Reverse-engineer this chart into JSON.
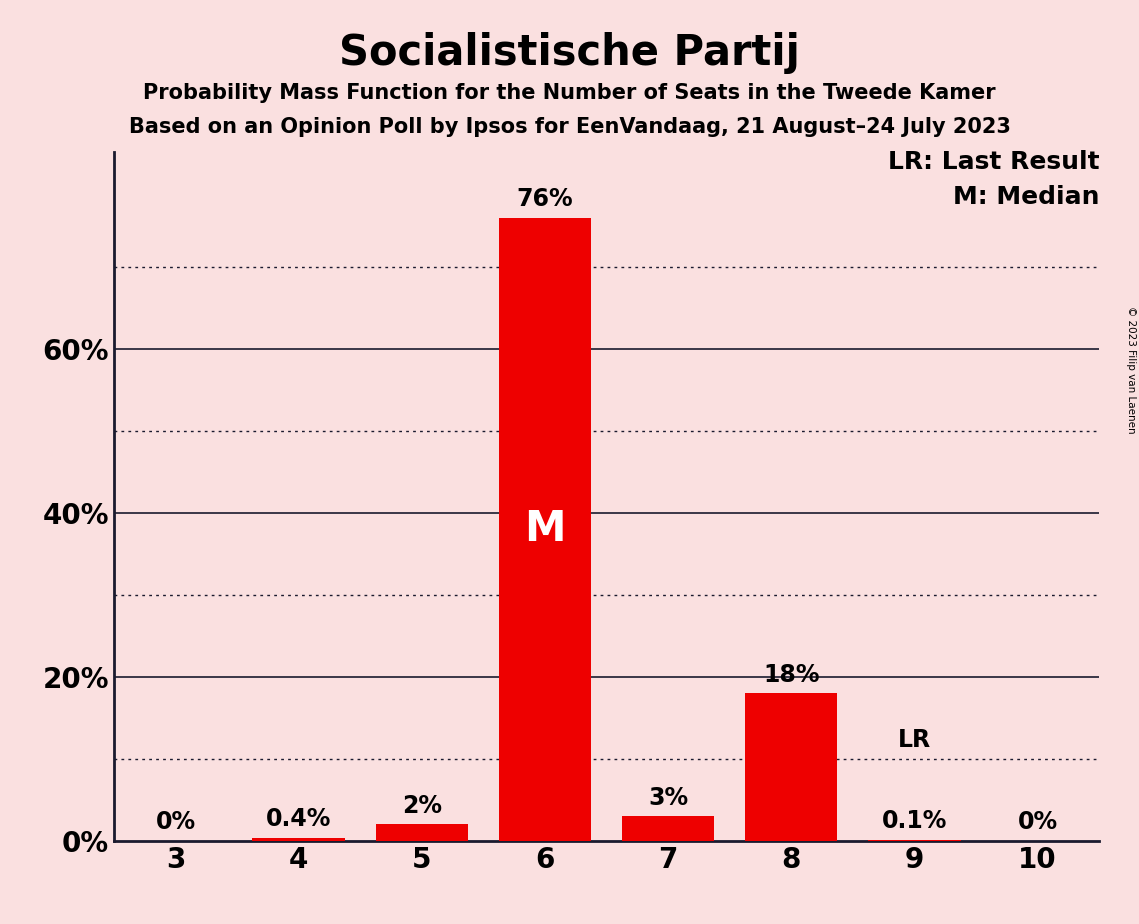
{
  "title": "Socialistische Partij",
  "subtitle1": "Probability Mass Function for the Number of Seats in the Tweede Kamer",
  "subtitle2": "Based on an Opinion Poll by Ipsos for EenVandaag, 21 August–24 July 2023",
  "categories": [
    3,
    4,
    5,
    6,
    7,
    8,
    9,
    10
  ],
  "values": [
    0.0,
    0.4,
    2.0,
    76.0,
    3.0,
    18.0,
    0.1,
    0.0
  ],
  "bar_labels": [
    "0%",
    "0.4%",
    "2%",
    "76%",
    "3%",
    "18%",
    "0.1%",
    "0%"
  ],
  "bar_color": "#EE0000",
  "background_color": "#FAE0E0",
  "median_bar_index": 3,
  "median_label": "M",
  "lr_value": 9,
  "lr_label": "LR",
  "legend_lr": "LR: Last Result",
  "legend_m": "M: Median",
  "solid_yticks": [
    20,
    40,
    60
  ],
  "dotted_yticks": [
    10,
    30,
    50,
    70
  ],
  "ytick_labels_left": [
    "20%",
    "40%",
    "60%"
  ],
  "ylim": [
    0,
    84
  ],
  "copyright_text": "© 2023 Filip van Laenen",
  "title_fontsize": 30,
  "subtitle_fontsize": 15,
  "bar_label_fontsize": 17,
  "ytick_fontsize": 20,
  "xtick_fontsize": 20,
  "legend_fontsize": 18,
  "median_label_fontsize": 30
}
